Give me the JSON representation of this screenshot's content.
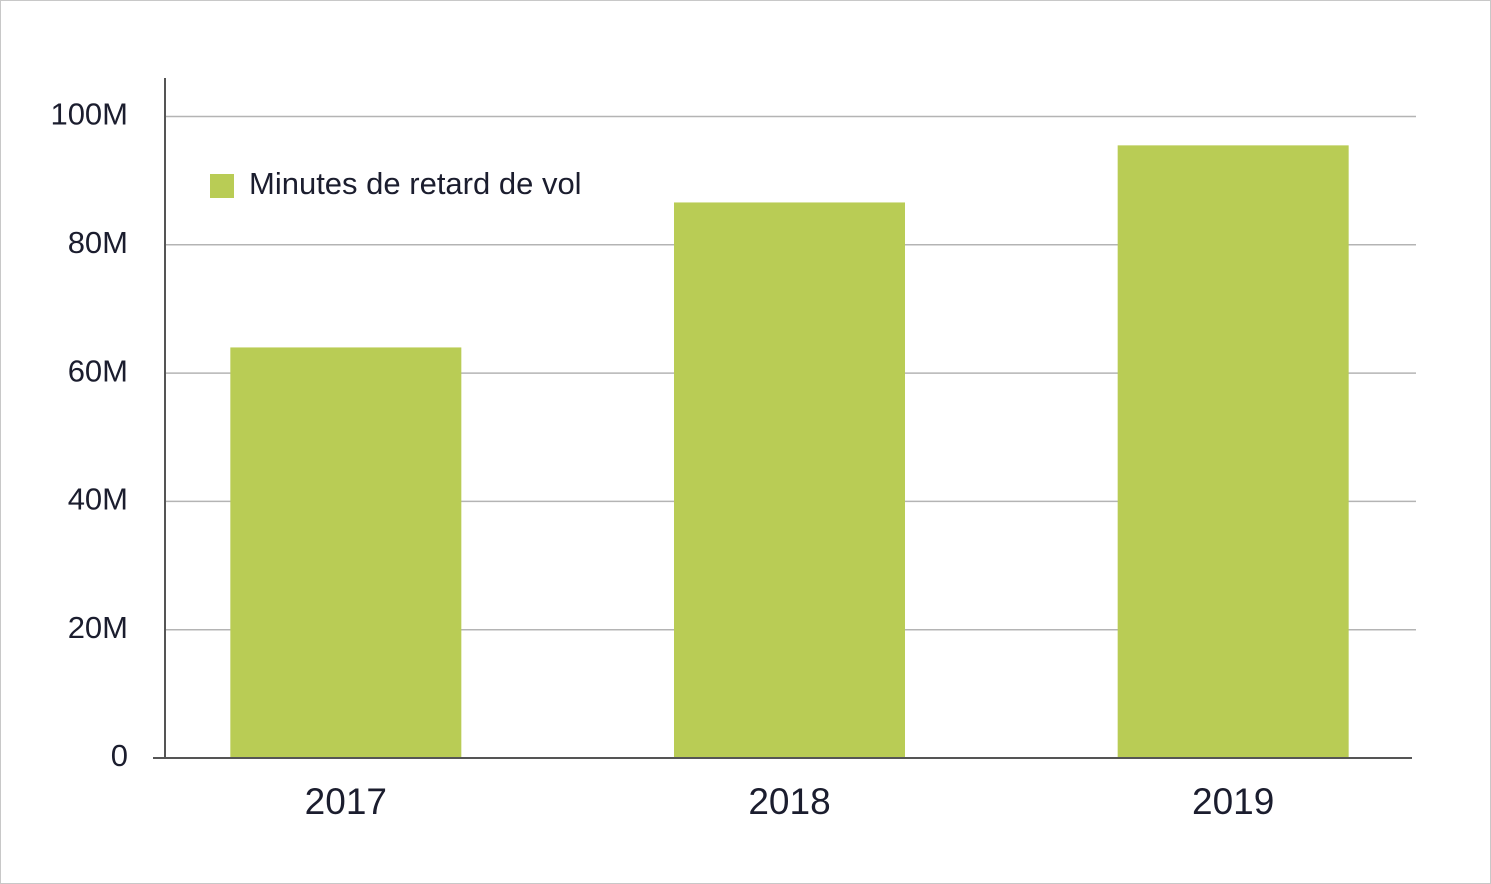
{
  "chart_data": {
    "type": "bar",
    "categories": [
      "2017",
      "2018",
      "2019"
    ],
    "series": [
      {
        "name": "Minutes de retard de vol",
        "color": "#b9cc55",
        "values": [
          64000000,
          86600000,
          95500000
        ]
      }
    ],
    "ylim": [
      0,
      106000000
    ],
    "yticks": [
      0,
      {
        "value": 20000000,
        "label": "20M"
      },
      {
        "value": 40000000,
        "label": "40M"
      },
      {
        "value": 60000000,
        "label": "60M"
      },
      {
        "value": 80000000,
        "label": "80M"
      },
      {
        "value": 100000000,
        "label": "100M"
      }
    ],
    "grid": true,
    "legend": "upper-left"
  }
}
